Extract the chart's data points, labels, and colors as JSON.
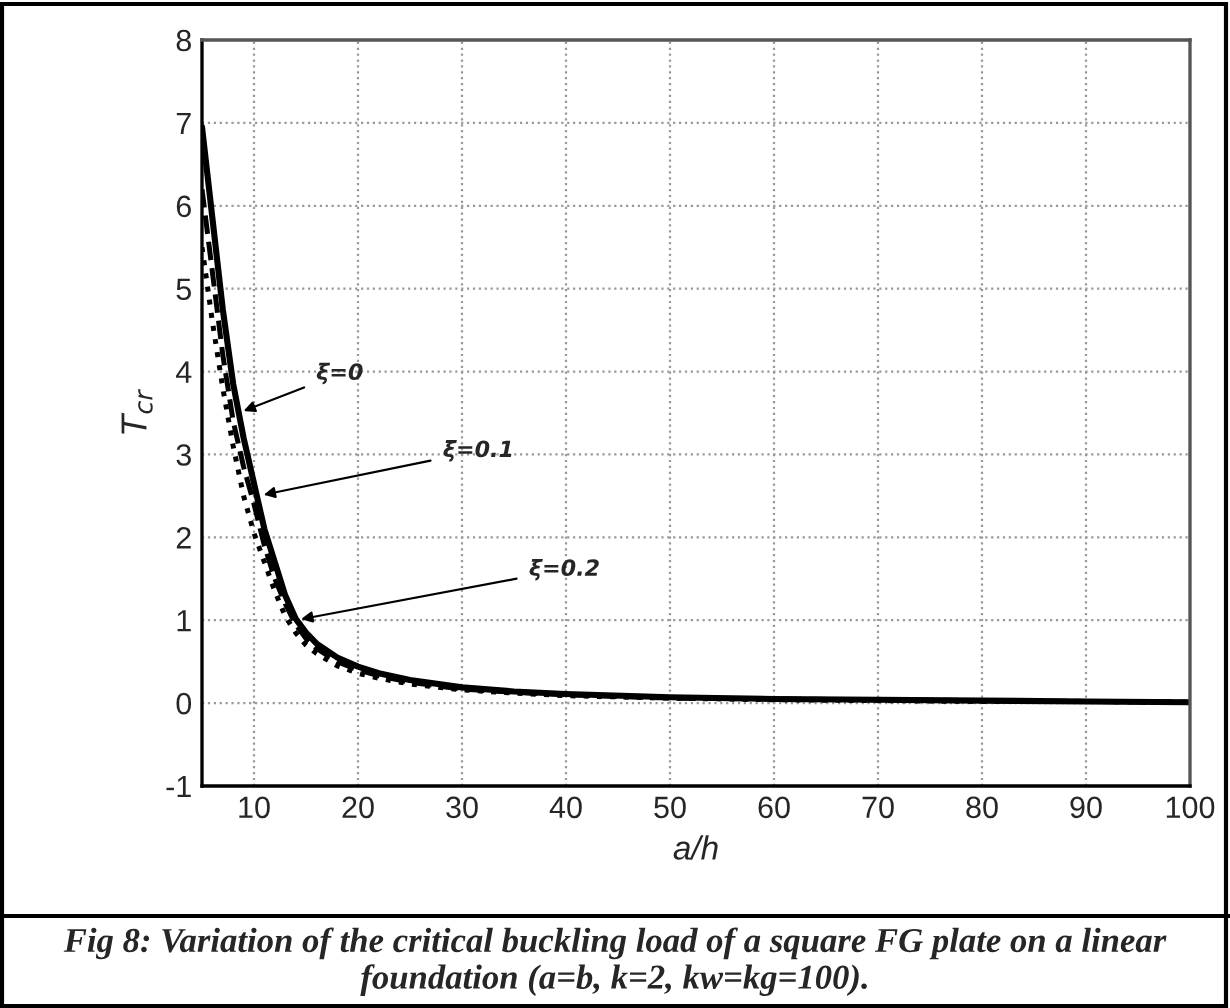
{
  "chart_data": {
    "type": "line",
    "xlabel": "a/h",
    "ylabel": "T$_{cr}$",
    "xlim": [
      5,
      100
    ],
    "ylim": [
      -1,
      8
    ],
    "xticks": [
      10,
      20,
      30,
      40,
      50,
      60,
      70,
      80,
      90,
      100
    ],
    "yticks": [
      -1,
      0,
      1,
      2,
      3,
      4,
      5,
      6,
      7,
      8
    ],
    "grid": true,
    "marker": "none",
    "x": [
      5,
      6,
      7,
      8,
      9,
      10,
      11,
      12,
      13,
      14,
      15,
      16,
      18,
      20,
      22,
      25,
      30,
      35,
      40,
      50,
      60,
      70,
      80,
      90,
      100
    ],
    "series": [
      {
        "color": "#000000",
        "line_style": "solid",
        "values": [
          6.95,
          5.85,
          4.75,
          3.85,
          3.2,
          2.65,
          2.1,
          1.7,
          1.3,
          1.02,
          0.85,
          0.72,
          0.55,
          0.44,
          0.36,
          0.28,
          0.19,
          0.14,
          0.11,
          0.07,
          0.05,
          0.04,
          0.03,
          0.02,
          0.01
        ]
      },
      {
        "color": "#000000",
        "line_style": "dashed",
        "values": [
          6.2,
          5.2,
          4.2,
          3.4,
          2.85,
          2.4,
          1.9,
          1.5,
          1.2,
          0.95,
          0.78,
          0.66,
          0.5,
          0.4,
          0.33,
          0.25,
          0.17,
          0.13,
          0.1,
          0.06,
          0.05,
          0.04,
          0.03,
          0.02,
          0.01
        ]
      },
      {
        "color": "#000000",
        "line_style": "dotted",
        "values": [
          5.5,
          4.6,
          3.8,
          3.1,
          2.5,
          2.05,
          1.7,
          1.35,
          1.05,
          0.85,
          0.7,
          0.6,
          0.45,
          0.36,
          0.3,
          0.23,
          0.16,
          0.12,
          0.09,
          0.06,
          0.04,
          0.03,
          0.02,
          0.02,
          0.01
        ]
      }
    ],
    "annotations": [
      {
        "text": "ξ=0",
        "x": 8.5,
        "y": 3.5
      },
      {
        "text": "ξ=0.1",
        "x": 10.4,
        "y": 2.5
      },
      {
        "text": "ξ=0.2",
        "x": 14,
        "y": 1.0
      },
      "Fig 8: Variation of the critical buckling load of a square FG plate on a linear foundation (a=b, k=2, kw=kg=100)."
    ]
  }
}
